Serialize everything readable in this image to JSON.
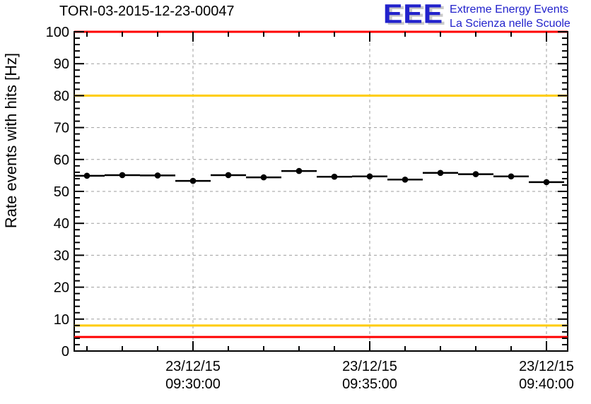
{
  "header": {
    "title": "TORI-03-2015-12-23-00047",
    "logo": {
      "acronym": "EEE",
      "line1": "Extreme Energy Events",
      "line2": "La Scienza nelle Scuole",
      "blue": "#2222cc",
      "shadow": "#c9c9c9"
    }
  },
  "chart_data": {
    "type": "scatter",
    "title": "TORI-03-2015-12-23-00047",
    "xlabel": "",
    "ylabel": "Rate events with hits [Hz]",
    "ylim": [
      0,
      100
    ],
    "y_major_step": 10,
    "y_minor_step": 2,
    "grid": true,
    "x_domain_minutes_from_0930": [
      -3.36,
      10.6
    ],
    "x_minor_step_minutes": 1,
    "x_major_ticks": [
      {
        "minutes": 0,
        "date": "23/12/15",
        "time": "09:30:00"
      },
      {
        "minutes": 5,
        "date": "23/12/15",
        "time": "09:35:00"
      },
      {
        "minutes": 10,
        "date": "23/12/15",
        "time": "09:40:00"
      }
    ],
    "series": [
      {
        "name": "rate-events-with-hits",
        "marker": "filled-circle",
        "color": "#000000",
        "x_halfwidth_minutes": 0.5,
        "points": [
          {
            "time": "09:27:00",
            "minutes": -3,
            "hz": 54.9
          },
          {
            "time": "09:28:00",
            "minutes": -2,
            "hz": 55.1
          },
          {
            "time": "09:29:00",
            "minutes": -1,
            "hz": 55.0
          },
          {
            "time": "09:30:00",
            "minutes": 0,
            "hz": 53.3
          },
          {
            "time": "09:31:00",
            "minutes": 1,
            "hz": 55.1
          },
          {
            "time": "09:32:00",
            "minutes": 2,
            "hz": 54.4
          },
          {
            "time": "09:33:00",
            "minutes": 3,
            "hz": 56.4
          },
          {
            "time": "09:34:00",
            "minutes": 4,
            "hz": 54.6
          },
          {
            "time": "09:35:00",
            "minutes": 5,
            "hz": 54.7
          },
          {
            "time": "09:36:00",
            "minutes": 6,
            "hz": 53.7
          },
          {
            "time": "09:37:00",
            "minutes": 7,
            "hz": 55.8
          },
          {
            "time": "09:38:00",
            "minutes": 8,
            "hz": 55.4
          },
          {
            "time": "09:39:00",
            "minutes": 9,
            "hz": 54.7
          },
          {
            "time": "09:40:00",
            "minutes": 10,
            "hz": 52.9
          }
        ]
      }
    ],
    "threshold_lines": [
      {
        "hz": 100,
        "color": "#ff0000"
      },
      {
        "hz": 80,
        "color": "#ffcc00"
      },
      {
        "hz": 8,
        "color": "#ffcc00"
      },
      {
        "hz": 4.4,
        "color": "#ff0000"
      }
    ],
    "colors": {
      "grid": "#9e9e9e",
      "axis": "#000000",
      "marker": "#000000"
    }
  }
}
